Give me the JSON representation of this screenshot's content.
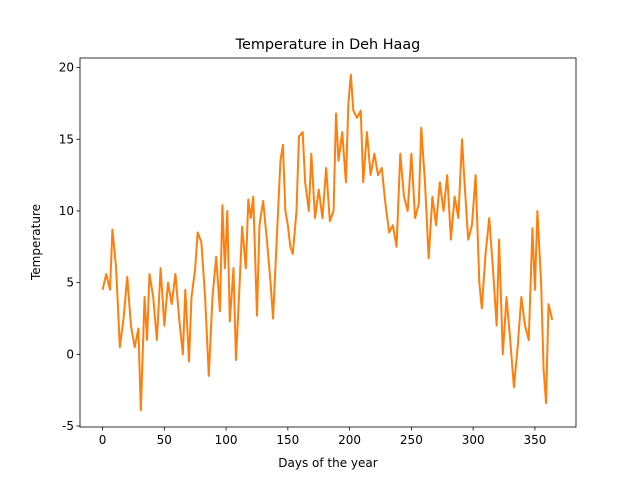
{
  "chart_data": {
    "type": "line",
    "title": "Temperature in Deh Haag",
    "xlabel": "Days of the year",
    "ylabel": "Temperature",
    "x": [
      0,
      3,
      6,
      8,
      11,
      14,
      17,
      20,
      23,
      26,
      29,
      31,
      34,
      36,
      38,
      41,
      44,
      47,
      50,
      53,
      56,
      59,
      62,
      65,
      67,
      70,
      72,
      75,
      77,
      80,
      83,
      86,
      89,
      92,
      95,
      97,
      99,
      101,
      103,
      106,
      108,
      111,
      113,
      116,
      118,
      120,
      122,
      125,
      127,
      130,
      133,
      136,
      138,
      141,
      144,
      146,
      148,
      150,
      152,
      154,
      157,
      159,
      162,
      164,
      167,
      169,
      172,
      175,
      178,
      181,
      184,
      187,
      189,
      191,
      194,
      197,
      199,
      201,
      203,
      206,
      209,
      211,
      214,
      217,
      220,
      223,
      226,
      229,
      232,
      235,
      238,
      241,
      244,
      247,
      250,
      253,
      256,
      258,
      261,
      264,
      267,
      270,
      273,
      276,
      279,
      282,
      285,
      288,
      291,
      293,
      296,
      299,
      302,
      305,
      307,
      310,
      313,
      316,
      319,
      321,
      324,
      327,
      330,
      333,
      336,
      339,
      342,
      345,
      348,
      350,
      352,
      355,
      357,
      359,
      361,
      364
    ],
    "series": [
      {
        "color": "#ff7f0e",
        "values": [
          4.5,
          5.6,
          4.5,
          8.7,
          6,
          0.5,
          2.5,
          5.4,
          2,
          0.5,
          1.8,
          -3.9,
          4,
          1,
          5.6,
          4,
          1,
          6,
          2,
          5,
          3.5,
          5.6,
          2.5,
          0,
          4.5,
          -0.5,
          4,
          6,
          8.5,
          7.8,
          4,
          -1.5,
          4,
          6.8,
          3,
          10.4,
          6,
          10,
          2.3,
          6,
          -0.4,
          5,
          8.9,
          6,
          10.8,
          9.5,
          11,
          2.7,
          9,
          10.7,
          8,
          5,
          2.5,
          8,
          13.5,
          14.6,
          10,
          9,
          7.5,
          7,
          10,
          15.2,
          15.5,
          12,
          10,
          14,
          9.5,
          11.5,
          9.5,
          13,
          9.3,
          10,
          16.8,
          13.5,
          15.5,
          12,
          17.5,
          19.5,
          17,
          16.5,
          17,
          12,
          15.5,
          12.5,
          14,
          12.5,
          13,
          10.5,
          8.5,
          9,
          7.5,
          14,
          11,
          10,
          14,
          9.5,
          10.5,
          15.8,
          12,
          6.7,
          11,
          9,
          12,
          10,
          12.5,
          8,
          11,
          9.5,
          15,
          12,
          8,
          9,
          12.5,
          5,
          3.2,
          7,
          9.5,
          6,
          2,
          8,
          0,
          4,
          1,
          -2.3,
          0.5,
          4,
          2,
          1,
          8.8,
          4.5,
          10,
          5,
          -1,
          -3.4,
          3.5,
          2.4
        ]
      }
    ],
    "xlim": [
      -18.25,
      383.25
    ],
    "xticks": [
      0,
      50,
      100,
      150,
      200,
      250,
      300,
      350
    ],
    "ylim": [
      -5.07,
      20.67
    ],
    "yticks": [
      -5,
      0,
      5,
      10,
      15,
      20
    ]
  }
}
